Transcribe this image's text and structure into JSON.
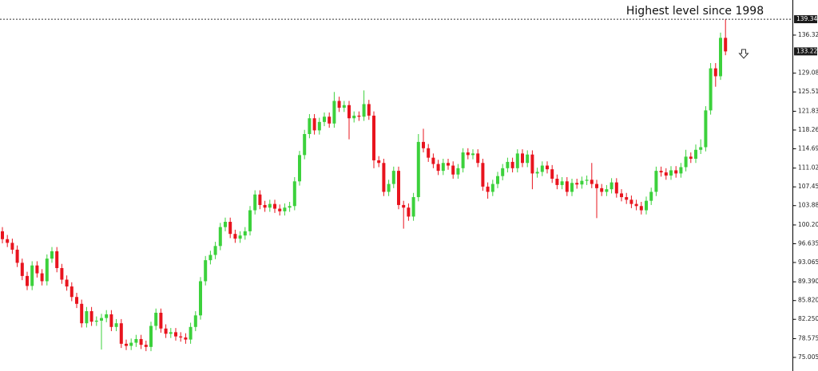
{
  "chart_data": {
    "type": "candlestick",
    "annotation": "Highest level since 1998",
    "highest_level": 139.345,
    "last_price": 133.223,
    "ylim": [
      72.42,
      143.0
    ],
    "yticks": [
      75.005,
      78.575,
      {
        "value": 82.25,
        "label": "82.250"
      },
      {
        "value": 85.82,
        "label": "85.820"
      },
      {
        "value": 89.39,
        "label": "89.390"
      },
      93.065,
      96.635,
      100.205,
      {
        "value": 103.88,
        "label": "103.880"
      },
      {
        "value": 107.45,
        "label": "107.450"
      },
      {
        "value": 111.02,
        "label": "111.020"
      },
      114.695,
      118.265,
      121.835,
      {
        "value": 125.51,
        "label": "125.510"
      },
      {
        "value": 129.08,
        "label": "129.080"
      },
      136.325
    ],
    "up_color": "#3cd13c",
    "down_color": "#e8141e",
    "open": [
      99.0,
      97.5,
      96.8,
      95.5,
      93.0,
      90.5,
      88.6,
      92.5,
      91.0,
      89.5,
      93.8,
      95.2,
      92.0,
      89.8,
      88.5,
      86.5,
      85.2,
      81.5,
      83.8,
      81.8,
      82.0,
      82.5,
      83.2,
      80.8,
      81.5,
      77.6,
      77.2,
      77.8,
      78.5,
      77.4,
      77.0,
      81.0,
      83.5,
      80.5,
      79.5,
      79.8,
      79.0,
      78.8,
      78.4,
      80.8,
      83.0,
      89.5,
      93.5,
      94.5,
      96.2,
      99.8,
      100.8,
      98.5,
      97.6,
      98.2,
      99.0,
      103.0,
      106.0,
      104.0,
      103.5,
      104.2,
      103.3,
      102.8,
      103.5,
      103.8,
      108.5,
      113.5,
      117.5,
      120.5,
      118.2,
      119.8,
      120.8,
      119.5,
      123.8,
      122.5,
      123.0,
      120.5,
      121.0,
      120.8,
      123.2,
      121.0,
      112.5,
      112.0,
      106.5,
      108.0,
      110.5,
      104.0,
      103.5,
      101.8,
      105.5,
      116.0,
      114.8,
      113.0,
      111.8,
      110.5,
      112.0,
      111.5,
      109.8,
      111.0,
      114.0,
      113.5,
      113.8,
      112.0,
      107.5,
      106.5,
      108.0,
      109.5,
      111.0,
      112.2,
      111.0,
      113.8,
      112.0,
      113.6,
      110.0,
      110.3,
      111.5,
      110.8,
      109.0,
      107.8,
      108.5,
      106.5,
      108.2,
      107.9,
      108.6,
      108.8,
      108.0,
      107.2,
      106.5,
      107.0,
      108.3,
      106.2,
      105.5,
      105.0,
      104.2,
      103.8,
      103.0,
      104.8,
      106.5,
      110.5,
      110.2,
      109.6,
      110.6,
      110.0,
      111.2,
      113.2,
      112.8,
      114.5,
      115.0,
      122.0,
      130.0,
      128.5,
      135.8
    ],
    "high": [
      99.8,
      98.3,
      97.6,
      96.3,
      93.8,
      91.3,
      93.3,
      93.3,
      91.8,
      94.6,
      96.0,
      96.0,
      92.8,
      90.6,
      89.3,
      87.3,
      86.0,
      84.6,
      84.6,
      82.8,
      83.3,
      84.0,
      84.0,
      82.3,
      82.3,
      78.4,
      78.6,
      79.3,
      79.3,
      78.2,
      81.8,
      84.3,
      84.3,
      81.3,
      80.6,
      80.6,
      79.8,
      79.6,
      81.6,
      83.8,
      90.3,
      94.3,
      95.3,
      97.0,
      100.6,
      101.6,
      101.6,
      99.3,
      99.0,
      99.8,
      103.8,
      106.8,
      106.8,
      104.8,
      105.0,
      105.0,
      104.1,
      104.3,
      104.6,
      109.3,
      114.3,
      118.3,
      121.3,
      121.3,
      120.6,
      121.6,
      121.6,
      125.5,
      124.6,
      123.8,
      123.8,
      121.8,
      121.8,
      125.8,
      124.0,
      121.8,
      113.3,
      112.8,
      108.8,
      111.3,
      111.3,
      104.8,
      104.3,
      106.3,
      117.5,
      118.5,
      115.6,
      113.8,
      112.6,
      112.8,
      112.8,
      112.3,
      111.8,
      114.8,
      114.8,
      114.6,
      114.6,
      112.8,
      108.3,
      108.8,
      110.3,
      111.8,
      113.0,
      113.0,
      114.6,
      114.6,
      114.4,
      114.4,
      111.1,
      112.3,
      112.3,
      111.6,
      109.8,
      109.3,
      109.3,
      109.0,
      109.0,
      109.4,
      109.6,
      112.0,
      108.8,
      108.0,
      107.8,
      109.1,
      109.1,
      107.0,
      106.3,
      105.8,
      105.0,
      104.6,
      105.6,
      107.3,
      111.3,
      111.3,
      111.0,
      111.4,
      111.4,
      112.0,
      114.5,
      114.0,
      115.5,
      116.5,
      122.8,
      131.0,
      131.0,
      136.8,
      139.345
    ],
    "low": [
      96.7,
      96.0,
      94.7,
      92.2,
      89.7,
      87.8,
      87.8,
      90.2,
      88.7,
      88.7,
      93.0,
      91.2,
      89.0,
      87.7,
      85.7,
      84.4,
      80.7,
      80.7,
      81.0,
      81.0,
      76.5,
      81.7,
      80.0,
      80.0,
      76.8,
      76.4,
      76.4,
      77.0,
      76.6,
      76.2,
      76.2,
      80.2,
      79.7,
      78.7,
      78.7,
      78.2,
      78.0,
      77.6,
      77.6,
      80.0,
      82.2,
      88.7,
      92.7,
      93.7,
      95.4,
      99.0,
      97.7,
      96.8,
      96.8,
      97.4,
      98.2,
      102.2,
      103.2,
      102.7,
      102.7,
      102.5,
      102.0,
      102.0,
      102.7,
      103.0,
      107.7,
      112.7,
      116.7,
      117.4,
      117.4,
      119.0,
      118.7,
      118.7,
      121.7,
      121.7,
      116.5,
      119.7,
      120.0,
      120.0,
      120.2,
      111.0,
      111.2,
      105.7,
      105.7,
      107.2,
      103.2,
      99.5,
      101.0,
      101.0,
      104.7,
      114.0,
      112.2,
      111.0,
      109.7,
      109.7,
      110.7,
      109.0,
      109.0,
      110.2,
      112.7,
      112.7,
      111.2,
      106.7,
      105.2,
      105.7,
      107.2,
      108.7,
      110.2,
      110.2,
      110.2,
      111.2,
      111.2,
      107.0,
      109.2,
      109.5,
      110.0,
      108.2,
      107.0,
      107.0,
      105.7,
      105.7,
      107.1,
      107.1,
      107.8,
      107.2,
      101.5,
      105.7,
      105.7,
      106.2,
      105.4,
      104.7,
      104.2,
      103.4,
      103.0,
      102.2,
      102.2,
      104.0,
      105.7,
      109.4,
      108.8,
      108.8,
      109.2,
      109.2,
      110.4,
      112.0,
      112.0,
      113.7,
      114.2,
      121.2,
      126.5,
      127.8,
      132.5
    ],
    "close": [
      97.5,
      96.8,
      95.5,
      93.0,
      90.5,
      88.6,
      92.5,
      91.0,
      89.5,
      93.8,
      95.2,
      92.0,
      89.8,
      88.5,
      86.5,
      85.2,
      81.5,
      83.8,
      81.8,
      82.0,
      82.5,
      83.2,
      80.8,
      81.5,
      77.6,
      77.2,
      77.8,
      78.5,
      77.4,
      77.0,
      81.0,
      83.5,
      80.5,
      79.5,
      79.8,
      79.0,
      78.8,
      78.4,
      80.8,
      83.0,
      89.5,
      93.5,
      94.5,
      96.2,
      99.8,
      100.8,
      98.5,
      97.6,
      98.2,
      99.0,
      103.0,
      106.0,
      104.0,
      103.5,
      104.2,
      103.3,
      102.8,
      103.5,
      103.8,
      108.5,
      113.5,
      117.5,
      120.5,
      118.2,
      119.8,
      120.8,
      119.5,
      123.8,
      122.5,
      123.0,
      120.5,
      121.0,
      120.8,
      123.2,
      121.0,
      112.5,
      112.0,
      106.5,
      108.0,
      110.5,
      104.0,
      103.5,
      101.8,
      105.5,
      116.0,
      114.8,
      113.0,
      111.8,
      110.5,
      112.0,
      111.5,
      109.8,
      111.0,
      114.0,
      113.5,
      113.8,
      112.0,
      107.5,
      106.5,
      108.0,
      109.5,
      111.0,
      112.2,
      111.0,
      113.8,
      112.0,
      113.6,
      110.0,
      110.3,
      111.5,
      110.8,
      109.0,
      107.8,
      108.5,
      106.5,
      108.2,
      107.9,
      108.6,
      108.8,
      108.0,
      107.2,
      106.5,
      107.0,
      108.3,
      106.2,
      105.5,
      105.0,
      104.2,
      103.8,
      103.0,
      104.8,
      106.5,
      110.5,
      110.2,
      109.6,
      110.6,
      110.0,
      111.2,
      113.2,
      112.8,
      114.5,
      115.0,
      122.0,
      130.0,
      128.5,
      135.8,
      133.223
    ]
  }
}
